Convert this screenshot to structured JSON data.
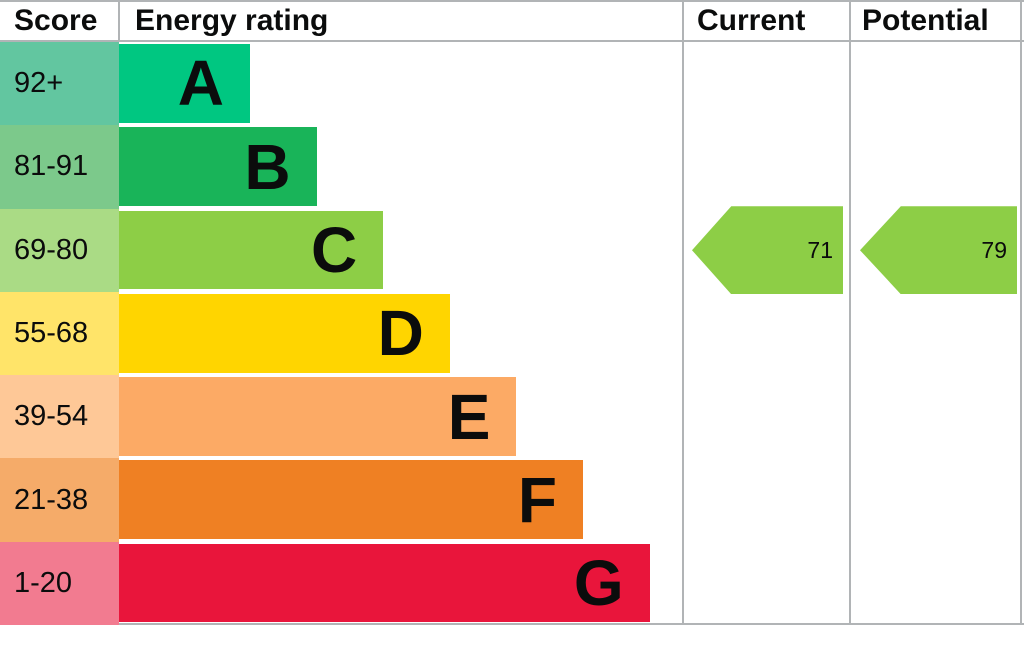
{
  "header": {
    "score": "Score",
    "rating": "Energy rating",
    "current": "Current",
    "potential": "Potential"
  },
  "bands": [
    {
      "score": "92+",
      "letter": "A",
      "color": "#00c781",
      "tint": "#62c6a0"
    },
    {
      "score": "81-91",
      "letter": "B",
      "color": "#19b459",
      "tint": "#7cc98b"
    },
    {
      "score": "69-80",
      "letter": "C",
      "color": "#8dce46",
      "tint": "#aadb85"
    },
    {
      "score": "55-68",
      "letter": "D",
      "color": "#ffd500",
      "tint": "#ffe469"
    },
    {
      "score": "39-54",
      "letter": "E",
      "color": "#fcaa65",
      "tint": "#fec897"
    },
    {
      "score": "21-38",
      "letter": "F",
      "color": "#ef8023",
      "tint": "#f5ab69"
    },
    {
      "score": "1-20",
      "letter": "G",
      "color": "#e9153b",
      "tint": "#f27b90"
    }
  ],
  "current": {
    "value": "71",
    "color": "#8dce46"
  },
  "potential": {
    "value": "79",
    "color": "#8dce46"
  },
  "colors": {
    "border": "#b1b4b6",
    "text": "#0b0c0c"
  },
  "chart_data": {
    "type": "bar",
    "title": "Energy rating",
    "columns": [
      "Score",
      "Energy rating",
      "Current",
      "Potential"
    ],
    "categories": [
      "A",
      "B",
      "C",
      "D",
      "E",
      "F",
      "G"
    ],
    "score_ranges": [
      "92+",
      "81-91",
      "69-80",
      "55-68",
      "39-54",
      "21-38",
      "1-20"
    ],
    "band_colors": [
      "#00c781",
      "#19b459",
      "#8dce46",
      "#ffd500",
      "#fcaa65",
      "#ef8023",
      "#e9153b"
    ],
    "markers": [
      {
        "label": "Current",
        "value": 71,
        "band": "C",
        "color": "#8dce46"
      },
      {
        "label": "Potential",
        "value": 79,
        "band": "C",
        "color": "#8dce46"
      }
    ],
    "legend_position": "none",
    "grid": false
  }
}
